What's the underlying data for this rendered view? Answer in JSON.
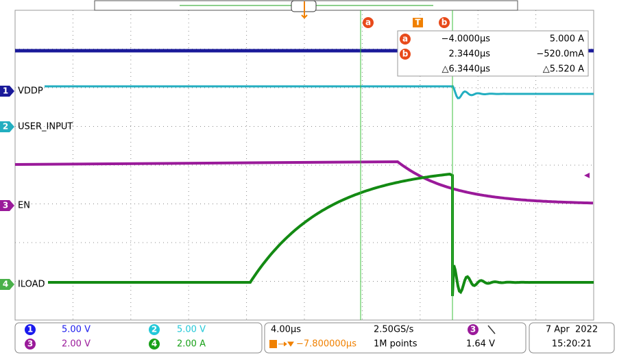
{
  "cursors": {
    "a": "a",
    "b": "b",
    "trigger": "T"
  },
  "readout": {
    "rows": [
      {
        "marker": "a",
        "time": "−4.0000µs",
        "value": "5.000 A"
      },
      {
        "marker": "b",
        "time": "2.3440µs",
        "value": "−520.0mA"
      },
      {
        "time": "△6.3440µs",
        "value": "△5.520 A"
      }
    ]
  },
  "channels": [
    {
      "number": "1",
      "label": "VDDP",
      "scale": "5.00 V"
    },
    {
      "number": "2",
      "label": "USER_INPUT",
      "scale": "5.00 V"
    },
    {
      "number": "3",
      "label": "EN",
      "scale": "2.00 V"
    },
    {
      "number": "4",
      "label": "ILOAD",
      "scale": "2.00 A"
    }
  ],
  "timebase": {
    "scale": "4.00µs",
    "sample_rate": "2.50GS/s",
    "trigger_position": "−7.800000µs",
    "record_length": "1M points",
    "trigger_source": "3",
    "trigger_level": "1.64 V"
  },
  "datetime": {
    "date": "7 Apr  2022",
    "time": "15:20:21"
  }
}
